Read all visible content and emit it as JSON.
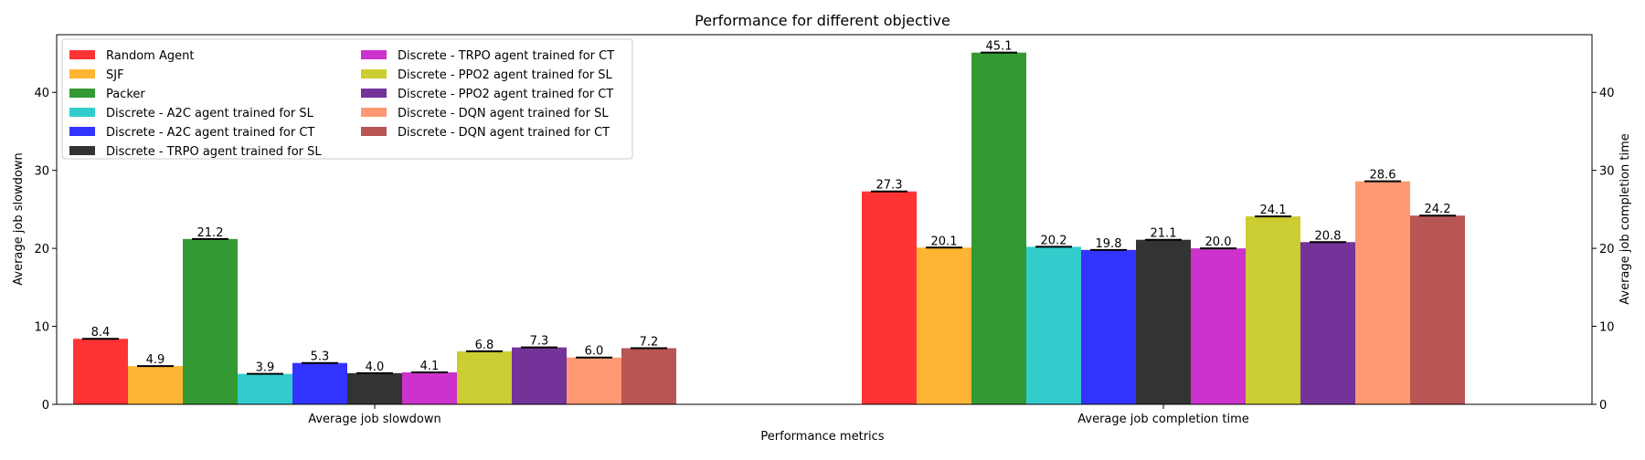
{
  "chart_data": {
    "type": "bar",
    "title": "Performance for different objective",
    "xlabel": "Performance metrics",
    "ylabel_left": "Average job slowdown",
    "ylabel_right": "Average job completion time",
    "ylim_left": [
      0,
      47.4
    ],
    "ylim_right": [
      0,
      47.4
    ],
    "yticks_left": [
      0,
      10,
      20,
      30,
      40
    ],
    "yticks_right": [
      0,
      10,
      20,
      30,
      40
    ],
    "categories": [
      "Average job slowdown",
      "Average job completion time"
    ],
    "legend_position": "upper-left",
    "grid": false,
    "series": [
      {
        "name": "Random Agent",
        "color": "#ff3333",
        "values": [
          8.4,
          27.3
        ],
        "labels": [
          "8.4",
          "27.3"
        ]
      },
      {
        "name": "SJF",
        "color": "#ffb533",
        "values": [
          4.9,
          20.1
        ],
        "labels": [
          "4.9",
          "20.1"
        ]
      },
      {
        "name": "Packer",
        "color": "#339933",
        "values": [
          21.2,
          45.1
        ],
        "labels": [
          "21.2",
          "45.1"
        ]
      },
      {
        "name": "Discrete - A2C agent trained for SL",
        "color": "#33cccc",
        "values": [
          3.9,
          20.2
        ],
        "labels": [
          "3.9",
          "20.2"
        ]
      },
      {
        "name": "Discrete - A2C agent trained for CT",
        "color": "#3333ff",
        "values": [
          5.3,
          19.8
        ],
        "labels": [
          "5.3",
          "19.8"
        ]
      },
      {
        "name": "Discrete - TRPO agent trained for SL",
        "color": "#333333",
        "values": [
          4.0,
          21.1
        ],
        "labels": [
          "4.0",
          "21.1"
        ]
      },
      {
        "name": "Discrete - TRPO agent trained for CT",
        "color": "#cc33cc",
        "values": [
          4.1,
          20.0
        ],
        "labels": [
          "4.1",
          "20.0"
        ]
      },
      {
        "name": "Discrete - PPO2 agent trained for SL",
        "color": "#cccc33",
        "values": [
          6.8,
          24.1
        ],
        "labels": [
          "6.8",
          "24.1"
        ]
      },
      {
        "name": "Discrete - PPO2 agent trained for CT",
        "color": "#733399",
        "values": [
          7.3,
          20.8
        ],
        "labels": [
          "7.3",
          "20.8"
        ]
      },
      {
        "name": "Discrete - DQN agent trained for SL",
        "color": "#ff9973",
        "values": [
          6.0,
          28.6
        ],
        "labels": [
          "6.0",
          "28.6"
        ]
      },
      {
        "name": "Discrete - DQN agent trained for CT",
        "color": "#b85555",
        "values": [
          7.2,
          24.2
        ],
        "labels": [
          "7.2",
          "24.2"
        ]
      }
    ]
  }
}
